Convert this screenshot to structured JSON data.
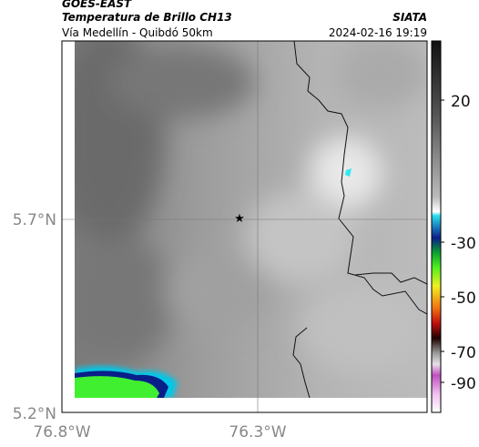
{
  "header": {
    "source": "GOES-EAST",
    "title": "Temperatura de Brillo CH13",
    "subtitle": "Vía Medellín - Quibdó 50km",
    "organization": "SIATA",
    "datetime": "2024-02-16 19:19"
  },
  "axes": {
    "latitude_labels": [
      "5.7°N",
      "5.2°N"
    ],
    "longitude_labels": [
      "76.8°W",
      "76.3°W"
    ]
  },
  "colorbar": {
    "labels": [
      "20",
      "-30",
      "-50",
      "-70",
      "-90"
    ]
  }
}
